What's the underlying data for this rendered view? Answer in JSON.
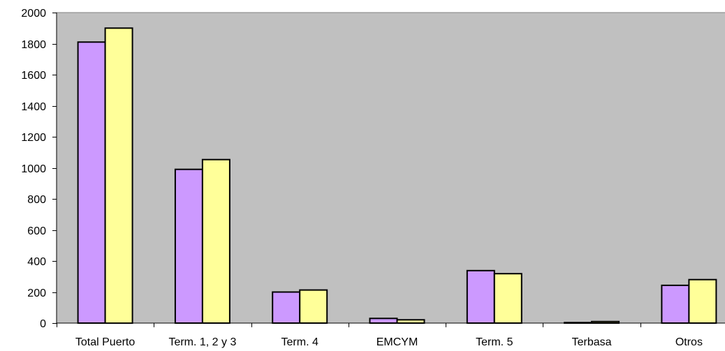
{
  "chart_data": {
    "type": "bar",
    "categories": [
      "Total Puerto",
      "Term. 1, 2 y 3",
      "Term. 4",
      "EMCYM",
      "Term. 5",
      "Terbasa",
      "Otros"
    ],
    "series": [
      {
        "values": [
          1810,
          990,
          200,
          30,
          338,
          3,
          243
        ]
      },
      {
        "values": [
          1900,
          1053,
          213,
          21,
          318,
          10,
          280
        ]
      }
    ],
    "series_colors": [
      "#cc99ff",
      "#ffff99"
    ],
    "plot_background": "#c0c0c0",
    "ylim": [
      0,
      2000
    ],
    "yticks": [
      0,
      200,
      400,
      600,
      800,
      1000,
      1200,
      1400,
      1600,
      1800,
      2000
    ],
    "ytick_labels": [
      "0",
      "200",
      "400",
      "600",
      "800",
      "1000",
      "1200",
      "1400",
      "1600",
      "1800",
      "2000"
    ],
    "title": "",
    "xlabel": "",
    "ylabel": "",
    "grid": false,
    "legend": "none"
  }
}
